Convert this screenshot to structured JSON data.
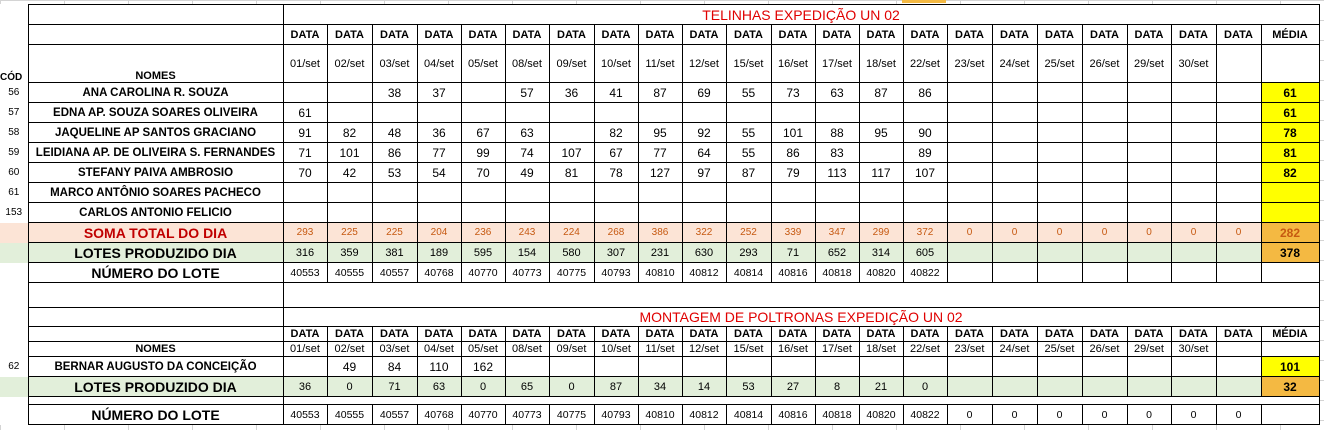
{
  "section1": {
    "title": "TELINHAS EXPEDIÇÃO UN 02",
    "data_label": "DATA",
    "media_label": "MÉDIA",
    "names_label": "NOMES",
    "cod_label": "CÓD",
    "dates": [
      "01/set",
      "02/set",
      "03/set",
      "04/set",
      "05/set",
      "08/set",
      "09/set",
      "10/set",
      "11/set",
      "12/set",
      "15/set",
      "16/set",
      "17/set",
      "18/set",
      "22/set",
      "23/set",
      "24/set",
      "25/set",
      "26/set",
      "29/set",
      "30/set",
      ""
    ],
    "rows": [
      {
        "cod": "56",
        "name": "ANA CAROLINA R. SOUZA",
        "values": [
          "",
          "",
          "38",
          "37",
          "",
          "57",
          "36",
          "41",
          "87",
          "69",
          "55",
          "73",
          "63",
          "87",
          "86",
          "",
          "",
          "",
          "",
          "",
          "",
          ""
        ],
        "media": "61"
      },
      {
        "cod": "57",
        "name": "EDNA AP. SOUZA SOARES OLIVEIRA",
        "values": [
          "61",
          "",
          "",
          "",
          "",
          "",
          "",
          "",
          "",
          "",
          "",
          "",
          "",
          "",
          "",
          "",
          "",
          "",
          "",
          "",
          "",
          ""
        ],
        "media": "61"
      },
      {
        "cod": "58",
        "name": "JAQUELINE AP SANTOS GRACIANO",
        "values": [
          "91",
          "82",
          "48",
          "36",
          "67",
          "63",
          "",
          "82",
          "95",
          "92",
          "55",
          "101",
          "88",
          "95",
          "90",
          "",
          "",
          "",
          "",
          "",
          "",
          ""
        ],
        "media": "78"
      },
      {
        "cod": "59",
        "name": "LEIDIANA AP. DE OLIVEIRA S. FERNANDES",
        "values": [
          "71",
          "101",
          "86",
          "77",
          "99",
          "74",
          "107",
          "67",
          "77",
          "64",
          "55",
          "86",
          "83",
          "",
          "89",
          "",
          "",
          "",
          "",
          "",
          "",
          ""
        ],
        "media": "81"
      },
      {
        "cod": "60",
        "name": "STEFANY PAIVA AMBROSIO",
        "values": [
          "70",
          "42",
          "53",
          "54",
          "70",
          "49",
          "81",
          "78",
          "127",
          "97",
          "87",
          "79",
          "113",
          "117",
          "107",
          "",
          "",
          "",
          "",
          "",
          "",
          ""
        ],
        "media": "82"
      },
      {
        "cod": "61",
        "name": "MARCO ANTÔNIO SOARES PACHECO",
        "values": [
          "",
          "",
          "",
          "",
          "",
          "",
          "",
          "",
          "",
          "",
          "",
          "",
          "",
          "",
          "",
          "",
          "",
          "",
          "",
          "",
          "",
          ""
        ],
        "media": ""
      },
      {
        "cod": "153",
        "name": "CARLOS ANTONIO FELICIO",
        "values": [
          "",
          "",
          "",
          "",
          "",
          "",
          "",
          "",
          "",
          "",
          "",
          "",
          "",
          "",
          "",
          "",
          "",
          "",
          "",
          "",
          "",
          ""
        ],
        "media": ""
      }
    ],
    "soma": {
      "label": "SOMA TOTAL DO DIA",
      "values": [
        "293",
        "225",
        "225",
        "204",
        "236",
        "243",
        "224",
        "268",
        "386",
        "322",
        "252",
        "339",
        "347",
        "299",
        "372",
        "0",
        "0",
        "0",
        "0",
        "0",
        "0",
        "0"
      ],
      "media": "282"
    },
    "lotes": {
      "label": "LOTES PRODUZIDO DIA",
      "values": [
        "316",
        "359",
        "381",
        "189",
        "595",
        "154",
        "580",
        "307",
        "231",
        "630",
        "293",
        "71",
        "652",
        "314",
        "605",
        "",
        "",
        "",
        "",
        "",
        "",
        ""
      ],
      "media": "378"
    },
    "numero": {
      "label": "NÚMERO DO LOTE",
      "values": [
        "40553",
        "40555",
        "40557",
        "40768",
        "40770",
        "40773",
        "40775",
        "40793",
        "40810",
        "40812",
        "40814",
        "40816",
        "40818",
        "40820",
        "40822",
        "",
        "",
        "",
        "",
        "",
        "",
        ""
      ]
    }
  },
  "section2": {
    "title": "MONTAGEM DE POLTRONAS EXPEDIÇÃO UN 02",
    "data_label": "DATA",
    "media_label": "MÉDIA",
    "names_label": "NOMES",
    "dates": [
      "01/set",
      "02/set",
      "03/set",
      "04/set",
      "05/set",
      "08/set",
      "09/set",
      "10/set",
      "11/set",
      "12/set",
      "15/set",
      "16/set",
      "17/set",
      "18/set",
      "22/set",
      "23/set",
      "24/set",
      "25/set",
      "26/set",
      "29/set",
      "30/set",
      ""
    ],
    "rows": [
      {
        "cod": "62",
        "name": "BERNAR AUGUSTO DA CONCEIÇÃO",
        "values": [
          "",
          "49",
          "84",
          "110",
          "162",
          "",
          "",
          "",
          "",
          "",
          "",
          "",
          "",
          "",
          "",
          "",
          "",
          "",
          "",
          "",
          "",
          ""
        ],
        "media": "101"
      }
    ],
    "lotes": {
      "label": "LOTES PRODUZIDO DIA",
      "values": [
        "36",
        "0",
        "71",
        "63",
        "0",
        "65",
        "0",
        "87",
        "34",
        "14",
        "53",
        "27",
        "8",
        "21",
        "0",
        "",
        "",
        "",
        "",
        "",
        "",
        ""
      ],
      "media": "32"
    },
    "numero": {
      "label": "NÚMERO DO LOTE",
      "values": [
        "40553",
        "40555",
        "40557",
        "40768",
        "40770",
        "40773",
        "40775",
        "40793",
        "40810",
        "40812",
        "40814",
        "40816",
        "40818",
        "40820",
        "40822",
        "0",
        "0",
        "0",
        "0",
        "0",
        "0",
        "0"
      ]
    }
  }
}
